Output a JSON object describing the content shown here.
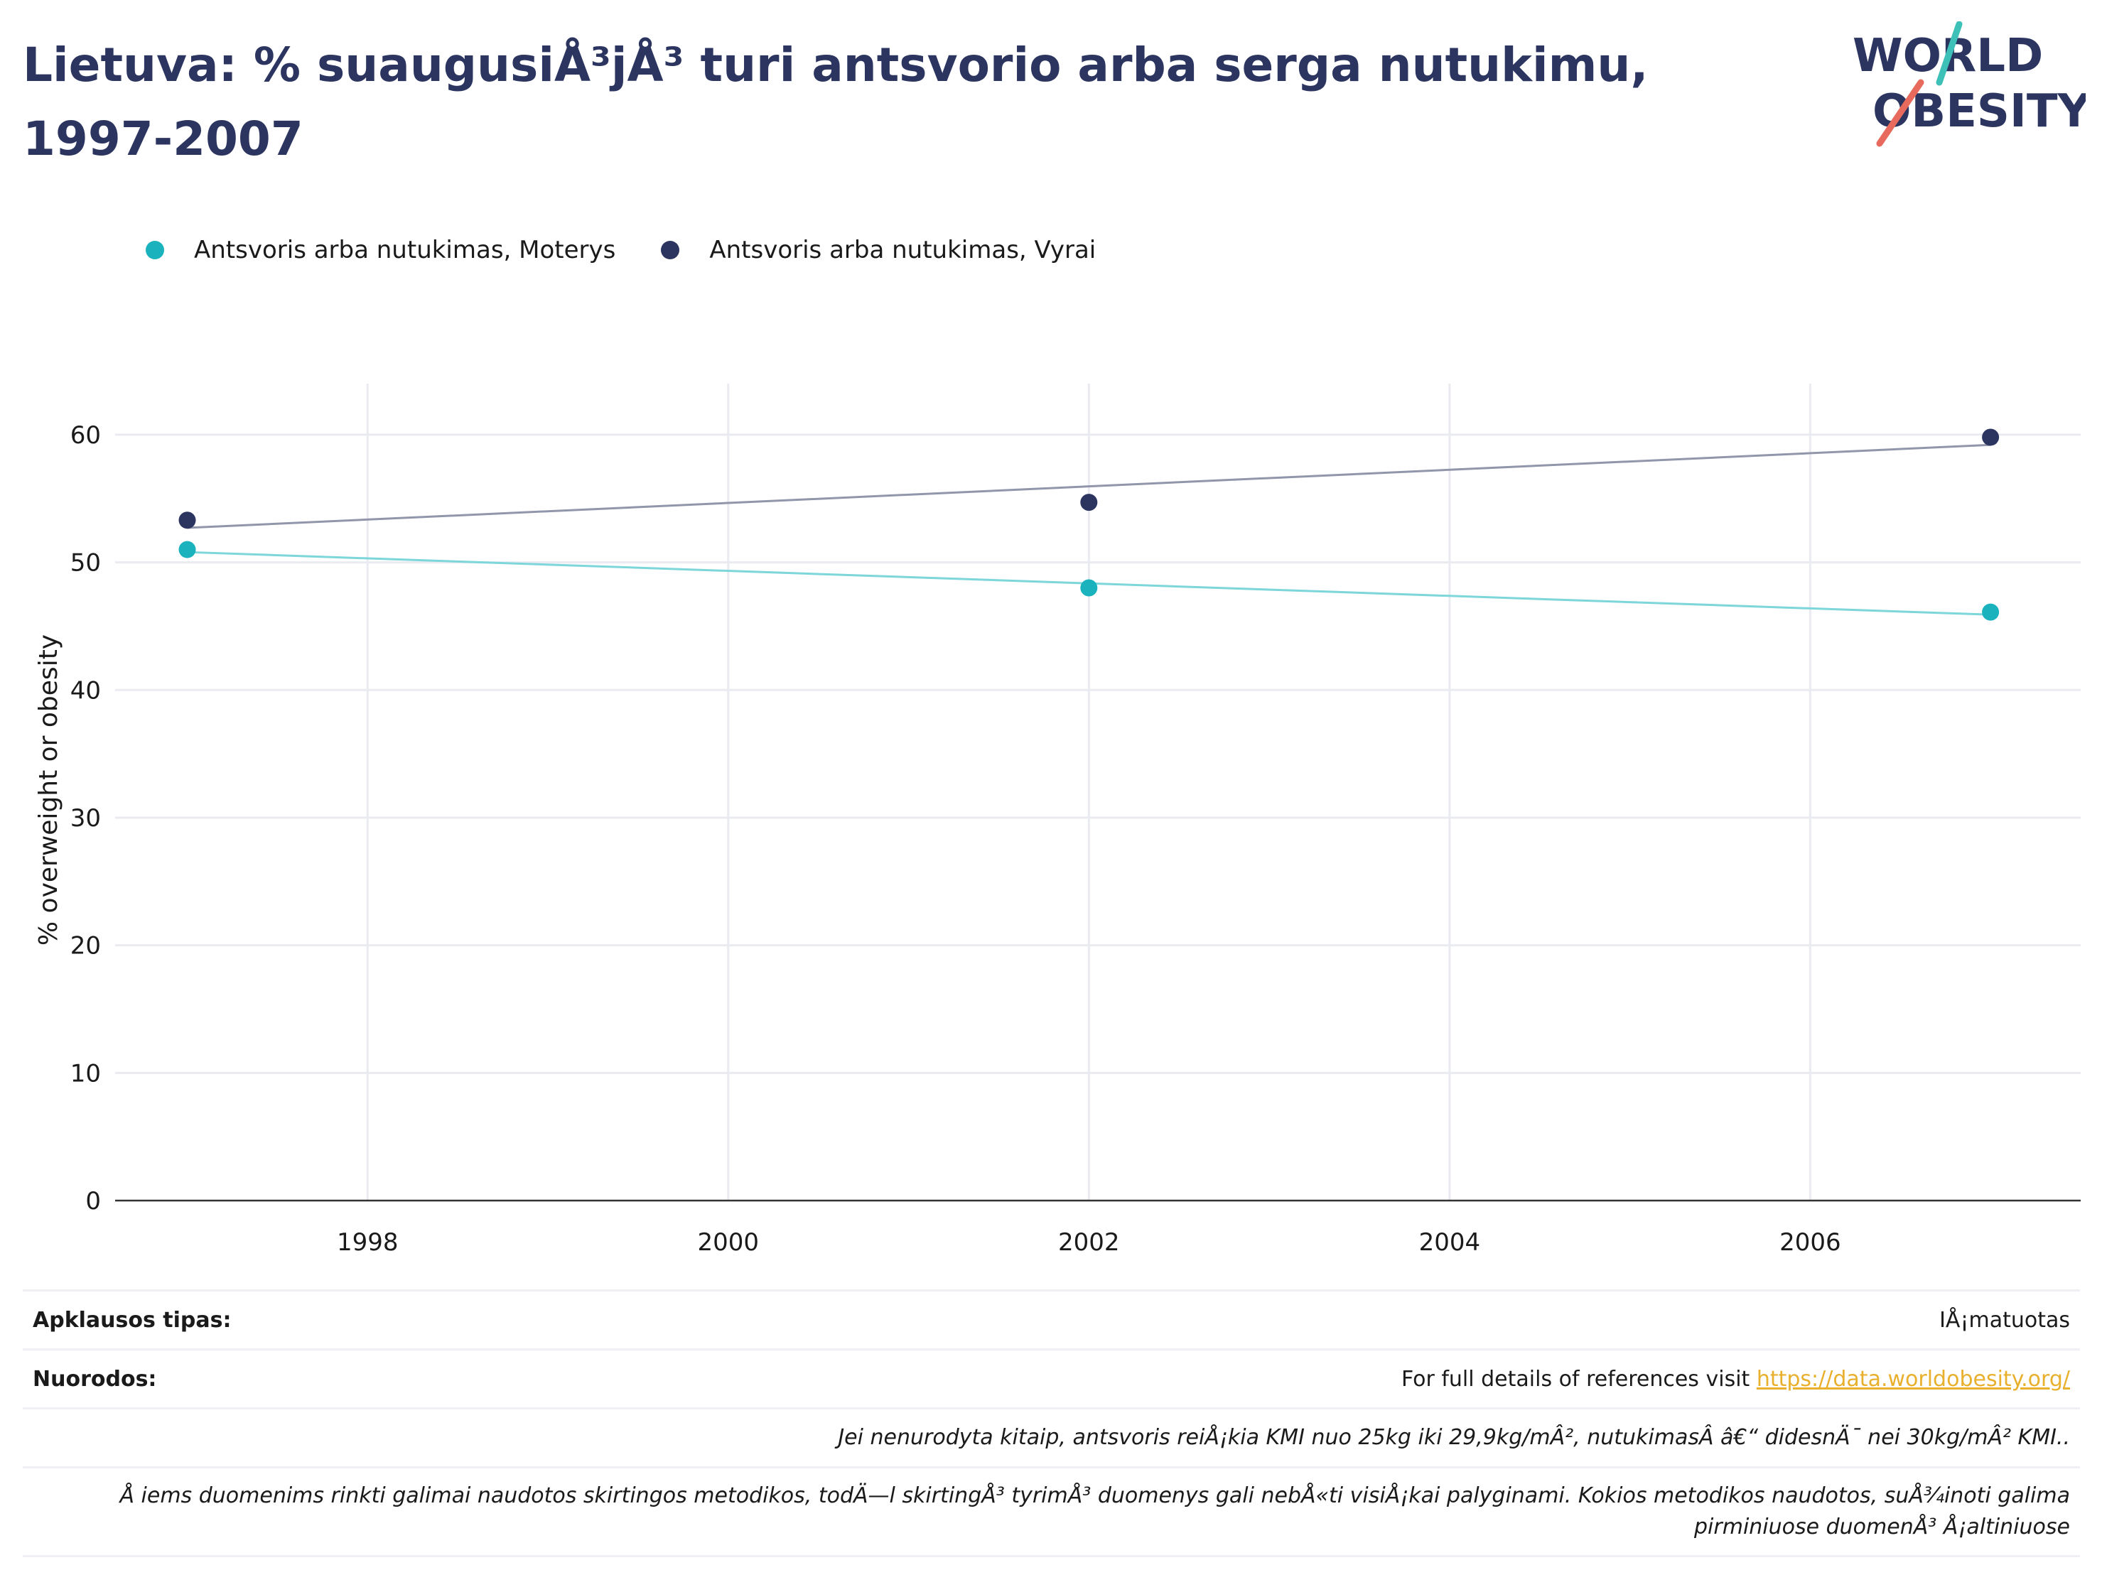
{
  "header": {
    "title": "Lietuva: % suaugusiÅ³jÅ³ turi antsvorio arba serga nutukimu, 1997-2007",
    "logo_line1": "WORLD",
    "logo_line2": "OBESITY"
  },
  "colors": {
    "women": "#19b2bd",
    "men": "#2b3560",
    "women_trend": "#7dd6da",
    "men_trend": "#9196aa",
    "title": "#2b3560",
    "link": "#e8b02c",
    "logo_accent1": "#3cc0b8",
    "logo_accent2": "#e86a5c"
  },
  "chart_data": {
    "type": "scatter",
    "ylabel": "% overweight or obesity",
    "xlabel": "",
    "xlim": [
      1996.6,
      2007.5
    ],
    "ylim": [
      0,
      64
    ],
    "x_ticks": [
      1998,
      2000,
      2002,
      2004,
      2006
    ],
    "y_ticks": [
      0,
      10,
      20,
      30,
      40,
      50,
      60
    ],
    "grid": true,
    "legend_position": "top-left",
    "series": [
      {
        "name": "Antsvoris arba nutukimas, Moterys",
        "color": "#19b2bd",
        "x": [
          1997,
          2002,
          2007
        ],
        "y": [
          51.0,
          48.0,
          46.1
        ],
        "trend": [
          [
            1997,
            50.8
          ],
          [
            2007,
            45.9
          ]
        ]
      },
      {
        "name": "Antsvoris arba nutukimas, Vyrai",
        "color": "#2b3560",
        "x": [
          1997,
          2002,
          2007
        ],
        "y": [
          53.3,
          54.7,
          59.8
        ],
        "trend": [
          [
            1997,
            52.7
          ],
          [
            2007,
            59.2
          ]
        ]
      }
    ]
  },
  "notes": {
    "survey_type_label": "Apklausos tipas:",
    "survey_type_value": "IÅ¡matuotas",
    "references_label": "Nuorodos:",
    "references_text": "For full details of references visit ",
    "references_link": "https://data.worldobesity.org/",
    "definition": "Jei nenurodyta kitaip, antsvoris reiÅ¡kia KMI nuo 25kg iki 29,9kg/mÂ², nutukimasÂ â€“ didesnÄ¯ nei 30kg/mÂ² KMI..",
    "methodology": "Å iems duomenims rinkti galimai naudotos skirtingos metodikos, todÄ—l skirtingÅ³ tyrimÅ³ duomenys gali nebÅ«ti visiÅ¡kai palyginami. Kokios metodikos naudotos, suÅ¾inoti galima pirminiuose duomenÅ³ Å¡altiniuose"
  }
}
